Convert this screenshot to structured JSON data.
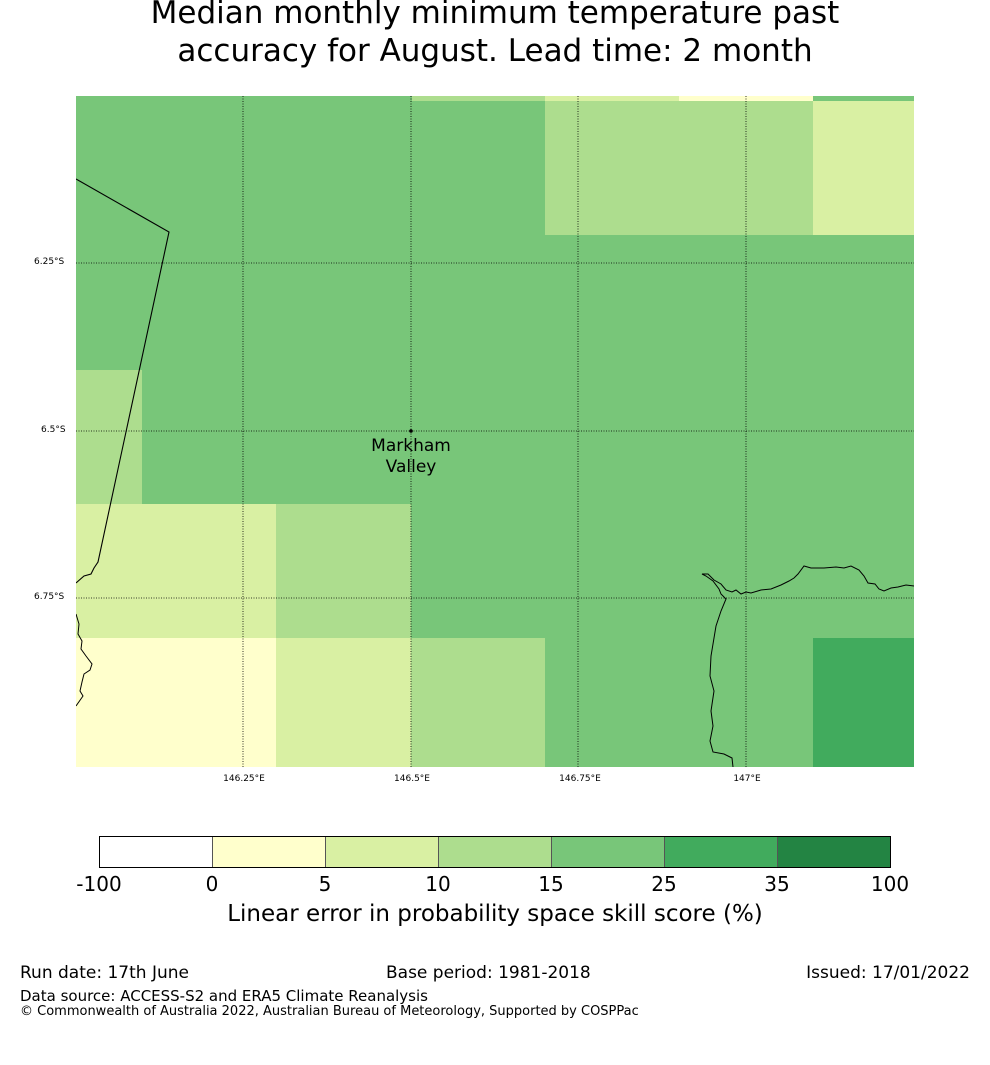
{
  "title_line1": "Median monthly minimum temperature past",
  "title_line2": "accuracy for August. Lead time: 2 month",
  "map": {
    "place_label_line1": "Markham",
    "place_label_line2": "Valley",
    "lat_labels": [
      "6.25°S",
      "6.5°S",
      "6.75°S"
    ],
    "lon_labels": [
      "146.25°E",
      "146.5°E",
      "146.75°E",
      "147°E"
    ],
    "colors": {
      "c0": "#ffffcc",
      "c5": "#d9f0a3",
      "c10": "#addd8e",
      "c15": "#78c679",
      "c25": "#41ab5d",
      "c35": "#238443"
    }
  },
  "colorbar": {
    "ticks": [
      "-100",
      "0",
      "5",
      "10",
      "15",
      "25",
      "35",
      "100"
    ],
    "colors": [
      "#ffffff",
      "#ffffcc",
      "#d9f0a3",
      "#addd8e",
      "#78c679",
      "#41ab5d",
      "#238443"
    ],
    "label": "Linear error in probability space skill score (%)"
  },
  "footer": {
    "run_date": "Run date: 17th June",
    "base_period": "Base period: 1981-2018",
    "issued": "Issued: 17/01/2022",
    "data_source": "Data source: ACCESS-S2 and ERA5 Climate Reanalysis",
    "copyright": "© Commonwealth of Australia 2022, Australian Bureau of Meteorology, Supported by COSPPac"
  }
}
